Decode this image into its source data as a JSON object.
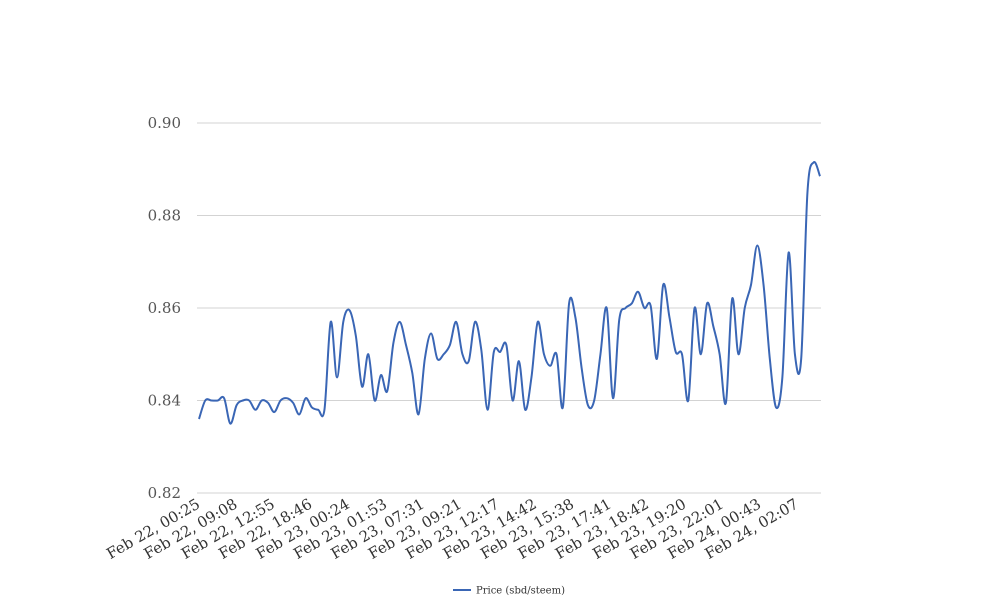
{
  "chart_data": {
    "type": "line",
    "title": "",
    "xlabel": "",
    "ylabel": "",
    "ylim": [
      0.82,
      0.9
    ],
    "y_ticks": [
      "0.82",
      "0.84",
      "0.86",
      "0.88",
      "0.90"
    ],
    "y_tick_values": [
      0.82,
      0.84,
      0.86,
      0.88,
      0.9
    ],
    "x_tick_labels": [
      "Feb 22, 00:25",
      "Feb 22, 09:08",
      "Feb 22, 12:55",
      "Feb 22, 18:46",
      "Feb 23, 00:24",
      "Feb 23, 01:53",
      "Feb 23, 07:31",
      "Feb 23, 09:21",
      "Feb 23, 12:17",
      "Feb 23, 14:42",
      "Feb 23, 15:38",
      "Feb 23, 17:41",
      "Feb 23, 18:42",
      "Feb 23, 19:20",
      "Feb 23, 22:01",
      "Feb 24, 00:43",
      "Feb 24, 02:07"
    ],
    "grid": true,
    "legend_position": "bottom-center",
    "series": [
      {
        "name": "Price (sbd/steem)",
        "color": "#3a66b5",
        "values": [
          0.836,
          0.84,
          0.84,
          0.84,
          0.8405,
          0.835,
          0.839,
          0.84,
          0.84,
          0.838,
          0.84,
          0.8395,
          0.8375,
          0.84,
          0.8405,
          0.8395,
          0.837,
          0.8405,
          0.8385,
          0.838,
          0.838,
          0.857,
          0.845,
          0.857,
          0.8595,
          0.854,
          0.843,
          0.85,
          0.84,
          0.8455,
          0.842,
          0.8525,
          0.857,
          0.852,
          0.846,
          0.837,
          0.849,
          0.8545,
          0.849,
          0.85,
          0.852,
          0.857,
          0.85,
          0.8485,
          0.857,
          0.851,
          0.838,
          0.8505,
          0.8505,
          0.852,
          0.84,
          0.8485,
          0.838,
          0.845,
          0.857,
          0.85,
          0.8475,
          0.85,
          0.8385,
          0.861,
          0.858,
          0.847,
          0.839,
          0.84,
          0.85,
          0.86,
          0.8405,
          0.8575,
          0.86,
          0.861,
          0.8635,
          0.86,
          0.8605,
          0.849,
          0.865,
          0.858,
          0.8505,
          0.85,
          0.84,
          0.86,
          0.85,
          0.861,
          0.856,
          0.85,
          0.8395,
          0.862,
          0.85,
          0.86,
          0.865,
          0.8735,
          0.865,
          0.849,
          0.8385,
          0.845,
          0.872,
          0.85,
          0.849,
          0.885,
          0.8915,
          0.8885
        ]
      }
    ]
  }
}
